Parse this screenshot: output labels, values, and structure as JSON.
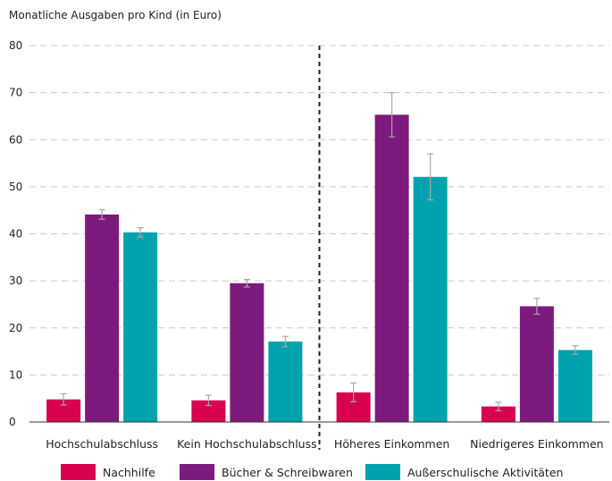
{
  "chart_data": {
    "type": "bar",
    "title": "",
    "ylabel": "Monatliche Ausgaben pro Kind (in Euro)",
    "xlabel": "",
    "ylim": [
      0,
      80
    ],
    "yticks": [
      0,
      10,
      20,
      30,
      40,
      50,
      60,
      70,
      80
    ],
    "grid": true,
    "legend_position": "bottom",
    "divider_after_category": "Kein Hochschulabschluss",
    "categories": [
      "Hochschulabschluss",
      "Kein Hochschulabschluss",
      "Höheres Einkommen",
      "Niedrigeres Einkommen"
    ],
    "series": [
      {
        "name": "Nachhilfe",
        "color": "#d8004f",
        "values": [
          4.8,
          4.6,
          6.3,
          3.3
        ],
        "errors": [
          1.2,
          1.1,
          2.0,
          0.9
        ]
      },
      {
        "name": "Bücher & Schreibwaren",
        "color": "#7d1a7d",
        "values": [
          44.1,
          29.5,
          65.3,
          24.6
        ],
        "errors": [
          1.0,
          0.8,
          4.7,
          1.7
        ]
      },
      {
        "name": "Außerschulische Aktivitäten",
        "color": "#00a3ad",
        "values": [
          40.3,
          17.1,
          52.1,
          15.3
        ],
        "errors": [
          1.0,
          1.1,
          4.9,
          0.9
        ]
      }
    ]
  }
}
